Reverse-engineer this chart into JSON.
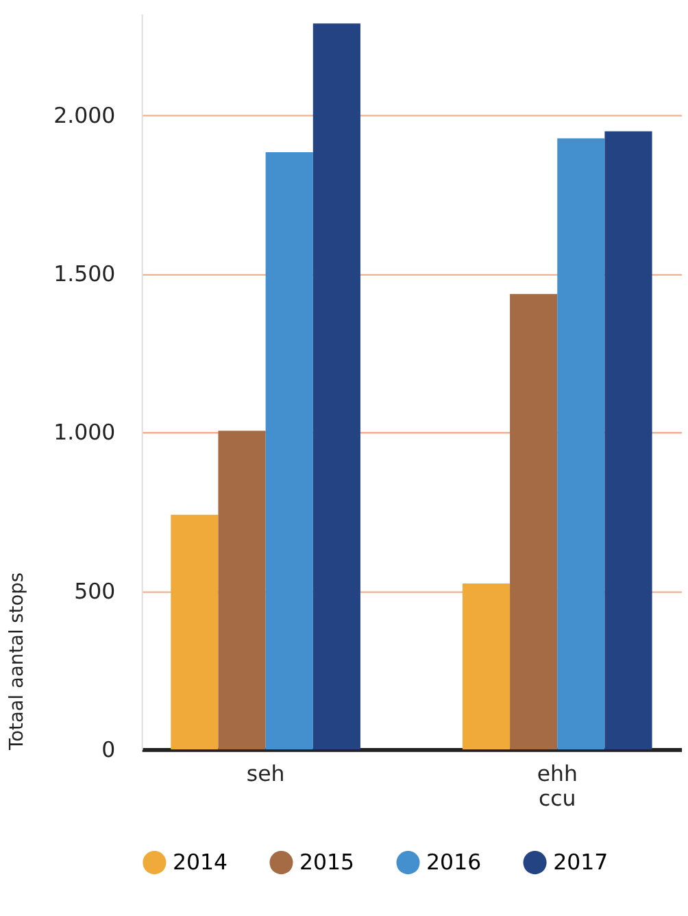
{
  "chart_data": {
    "type": "bar",
    "ylabel": "Totaal aantal stops",
    "categories": [
      "seh",
      "ehh\nccu"
    ],
    "series": [
      {
        "name": "2014",
        "color": "#f0aa3a",
        "values": [
          740,
          523
        ]
      },
      {
        "name": "2015",
        "color": "#a46b45",
        "values": [
          1005,
          1436
        ]
      },
      {
        "name": "2016",
        "color": "#448fcd",
        "values": [
          1883,
          1927
        ]
      },
      {
        "name": "2017",
        "color": "#234383",
        "values": [
          2289,
          1949
        ]
      }
    ],
    "ylim": [
      0,
      2320
    ],
    "yticks": [
      0,
      500,
      {
        "value": 1000,
        "label": "1.000"
      },
      {
        "value": 1500,
        "label": "1.500"
      },
      {
        "value": 2000,
        "label": "2.000"
      }
    ],
    "grid": "y",
    "legend": "bottom"
  }
}
